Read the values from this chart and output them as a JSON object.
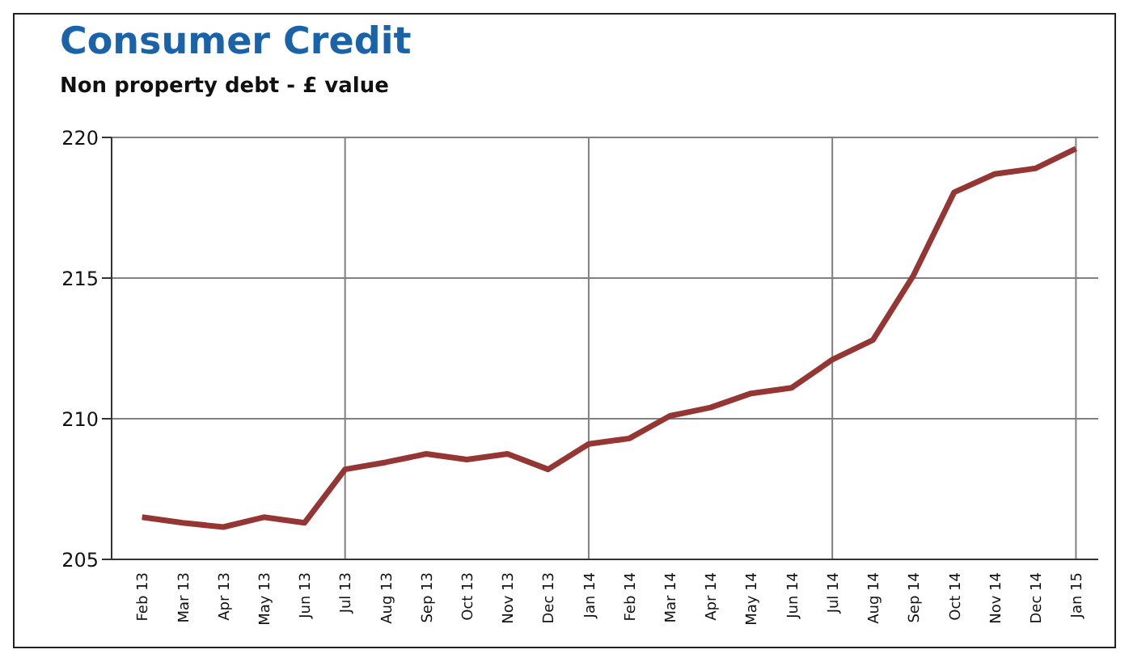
{
  "chart_data": {
    "type": "line",
    "title": "Consumer Credit",
    "subtitle": "Non property debt - £ value",
    "categories": [
      "Feb 13",
      "Mar 13",
      "Apr 13",
      "May 13",
      "Jun 13",
      "Jul 13",
      "Aug 13",
      "Sep 13",
      "Oct 13",
      "Nov 13",
      "Dec 13",
      "Jan 14",
      "Feb 14",
      "Mar 14",
      "Apr 14",
      "May 14",
      "Jun 14",
      "Jul 14",
      "Aug 14",
      "Sep 14",
      "Oct 14",
      "Nov 14",
      "Dec 14",
      "Jan 15"
    ],
    "series": [
      {
        "color": "#943634",
        "values": [
          206.5,
          206.3,
          206.15,
          206.5,
          206.3,
          208.2,
          208.45,
          208.75,
          208.55,
          208.75,
          208.2,
          209.1,
          209.3,
          210.1,
          210.4,
          210.9,
          211.1,
          212.1,
          212.8,
          215.1,
          218.05,
          218.7,
          218.9,
          219.6
        ]
      }
    ],
    "ylim": [
      205,
      220
    ],
    "yticks": [
      205,
      210,
      215,
      220
    ],
    "grid": "y",
    "marker": "none",
    "line_style": "solid",
    "ref_lines": [
      {
        "axis": "x",
        "value": "Jul 13",
        "color": "#808080"
      },
      {
        "axis": "x",
        "value": "Jan 14",
        "color": "#808080"
      },
      {
        "axis": "x",
        "value": "Jul 14",
        "color": "#808080"
      },
      {
        "axis": "x",
        "value": "Jan 15",
        "color": "#808080"
      }
    ]
  }
}
